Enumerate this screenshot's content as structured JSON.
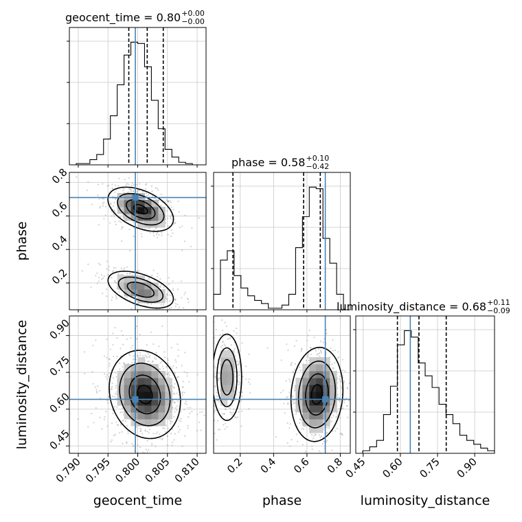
{
  "chart_data": {
    "type": "corner",
    "parameters": [
      {
        "name": "geocent_time",
        "label": "geocent_time",
        "range": [
          0.7885,
          0.8115
        ],
        "ticks": [
          "0.790",
          "0.795",
          "0.800",
          "0.805",
          "0.810"
        ],
        "tick_values": [
          0.79,
          0.795,
          0.8,
          0.805,
          0.81
        ],
        "truth": 0.7996,
        "quantiles": [
          0.7985,
          0.8016,
          0.8043
        ],
        "title_value": "0.80",
        "title_plus": "+0.00",
        "title_minus": "−0.00"
      },
      {
        "name": "phase",
        "label": "phase",
        "range": [
          0.04,
          0.86
        ],
        "ticks": [
          "0.2",
          "0.4",
          "0.6",
          "0.8"
        ],
        "tick_values": [
          0.2,
          0.4,
          0.6,
          0.8
        ],
        "truth": 0.71,
        "quantiles": [
          0.156,
          0.58,
          0.68
        ],
        "title_value": "0.58",
        "title_plus": "+0.10",
        "title_minus": "−0.42"
      },
      {
        "name": "luminosity_distance",
        "label": "luminosity_distance",
        "range": [
          0.42,
          0.98
        ],
        "ticks": [
          "0.45",
          "0.60",
          "0.75",
          "0.90"
        ],
        "tick_values": [
          0.45,
          0.6,
          0.75,
          0.9
        ],
        "truth": 0.64,
        "quantiles": [
          0.588,
          0.675,
          0.785
        ],
        "title_value": "0.68",
        "title_plus": "+0.11",
        "title_minus": "−0.09"
      }
    ],
    "histograms": {
      "geocent_time": {
        "edges_start": 0.7885,
        "edges_end": 0.8115,
        "counts": [
          0,
          1,
          1,
          4,
          8,
          20,
          38,
          62,
          85,
          95,
          94,
          76,
          50,
          28,
          12,
          6,
          2,
          1,
          0,
          0
        ]
      },
      "phase": {
        "edges_start": 0.04,
        "edges_end": 0.86,
        "counts": [
          10,
          32,
          38,
          22,
          14,
          9,
          6,
          4,
          1,
          1,
          3,
          10,
          40,
          60,
          79,
          78,
          46,
          30,
          10,
          0
        ]
      },
      "luminosity_distance": {
        "edges_start": 0.42,
        "edges_end": 0.98,
        "counts": [
          0,
          2,
          5,
          10,
          30,
          52,
          84,
          95,
          90,
          70,
          60,
          51,
          38,
          30,
          23,
          14,
          10,
          7,
          4,
          2
        ]
      }
    },
    "truth_color": "#4682b4",
    "contour_color": "#000000",
    "grid": true
  }
}
